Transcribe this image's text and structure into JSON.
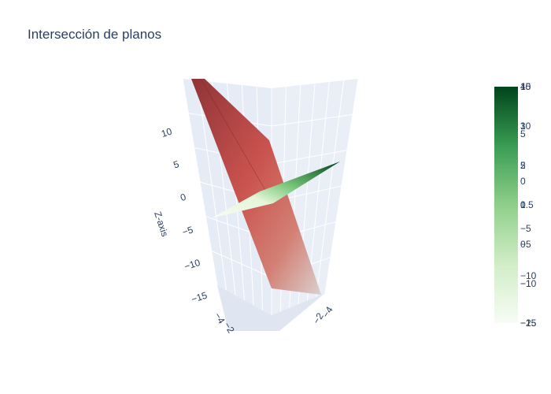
{
  "title": "Intersección de planos",
  "chart_data": {
    "type": "surface3d",
    "title": "Intersección de planos",
    "scene": {
      "zaxis": {
        "title": "Z-axis",
        "ticks": [
          "10",
          "5",
          "0",
          "−5",
          "−10",
          "−15"
        ],
        "range": [
          -15,
          13
        ]
      },
      "xaxis_ticks": [
        "−4",
        "−2"
      ],
      "yaxis_ticks": [
        "−4",
        "−2"
      ]
    },
    "surfaces": [
      {
        "colorscale": "Reds",
        "colors": [
          "#8b2a2e",
          "#c84b45",
          "#d4c3c0"
        ],
        "z_range": [
          -15,
          13
        ]
      },
      {
        "colorscale": "Greens",
        "colors": [
          "#f5fbf2",
          "#74c476",
          "#00441b"
        ],
        "z_range": [
          -1,
          1
        ]
      }
    ],
    "colorbars": [
      {
        "colorscale": "Greens",
        "ticks": [
          "15",
          "10",
          "5",
          "0",
          "−5",
          "−10",
          "−15"
        ]
      },
      {
        "colorscale": "Greens",
        "ticks": [
          "4",
          "3",
          "2",
          "1",
          "0",
          "−1",
          "−2"
        ]
      },
      {
        "colorscale": "Greens",
        "ticks": [
          "10",
          "5",
          "0",
          "−5",
          "−10",
          "−15"
        ]
      },
      {
        "colorscale": "Greens",
        "ticks": [
          "0.5"
        ]
      }
    ]
  }
}
